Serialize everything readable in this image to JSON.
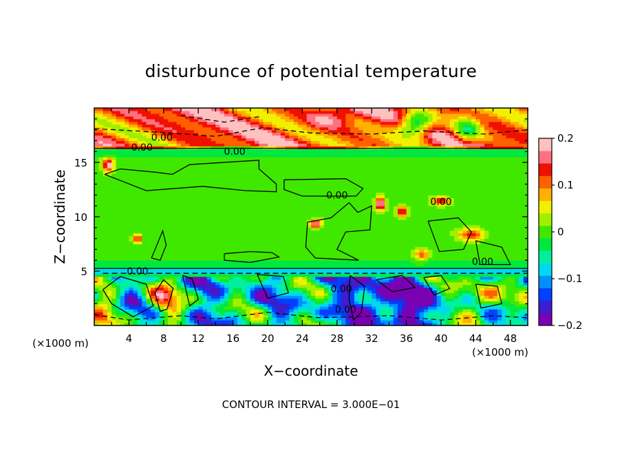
{
  "chart_data": {
    "type": "heatmap",
    "title": "disturbunce of potential temperature",
    "xlabel": "X−coordinate",
    "ylabel": "Z−coordinate",
    "x_unit": "(×1000 m)",
    "x_ticks": [
      "4",
      "8",
      "12",
      "16",
      "20",
      "24",
      "28",
      "32",
      "36",
      "40",
      "44",
      "48"
    ],
    "y_ticks": [
      "5",
      "10",
      "15"
    ],
    "xlim": [
      0,
      50
    ],
    "ylim": [
      0,
      20
    ],
    "footer": "CONTOUR INTERVAL = 3.000E−01",
    "colorbar": {
      "ticks": [
        "0.2",
        "0.1",
        "0",
        "−0.1",
        "−0.2"
      ],
      "range": [
        -0.2,
        0.2
      ],
      "colors": [
        "#7a00b4",
        "#3a1ed0",
        "#0040ff",
        "#0090ff",
        "#00d8f0",
        "#00f0a0",
        "#00e840",
        "#40e800",
        "#a0f000",
        "#f0f000",
        "#ffb000",
        "#ff6000",
        "#f01000",
        "#ff7080",
        "#ffc0c0"
      ]
    },
    "contour_labels": [
      {
        "text": "0.00",
        "x": 7.8,
        "z": 17.3
      },
      {
        "text": "0.00",
        "x": 5.5,
        "z": 16.4
      },
      {
        "text": "0.00",
        "x": 16.2,
        "z": 16.0
      },
      {
        "text": "0.00",
        "x": 28.0,
        "z": 12.0
      },
      {
        "text": "0.00",
        "x": 40.0,
        "z": 11.4
      },
      {
        "text": "0.00",
        "x": 44.8,
        "z": 5.9
      },
      {
        "text": "0.00",
        "x": 5.0,
        "z": 5.0
      },
      {
        "text": "0.00",
        "x": 28.5,
        "z": 3.4
      },
      {
        "text": "0.00",
        "x": 29.0,
        "z": 1.5
      }
    ]
  }
}
